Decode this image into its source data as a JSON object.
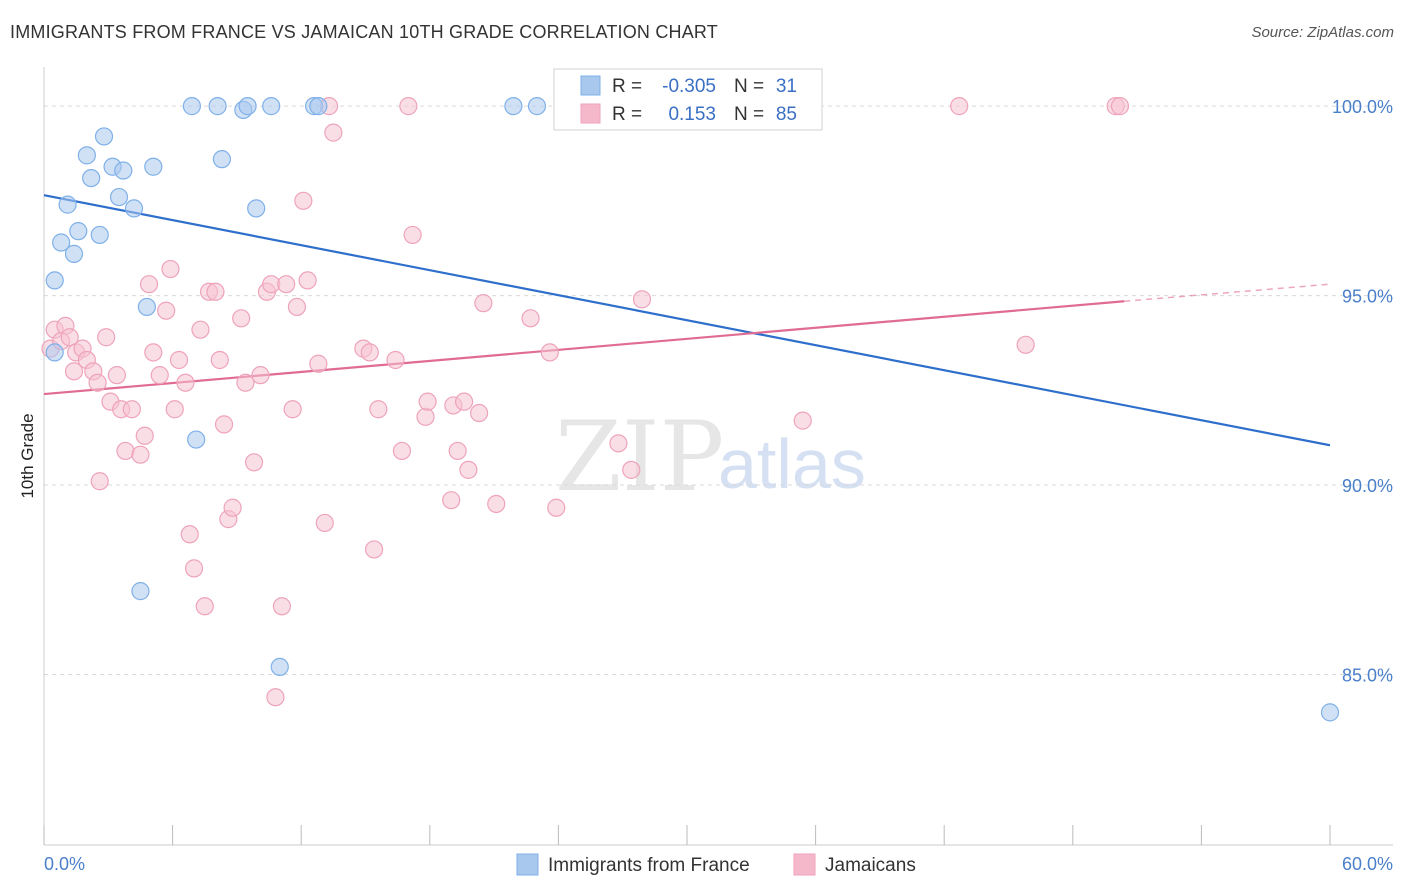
{
  "header": {
    "title": "IMMIGRANTS FROM FRANCE VS JAMAICAN 10TH GRADE CORRELATION CHART",
    "source": "Source: ZipAtlas.com"
  },
  "watermark": {
    "zip": "ZIP",
    "atlas": "atlas"
  },
  "legend_box": {
    "rows": [
      {
        "r_label": "R =",
        "r_value": "-0.305",
        "n_label": "N =",
        "n_value": "31",
        "color": "#a9c8ee"
      },
      {
        "r_label": "R =",
        "r_value": "0.153",
        "n_label": "N =",
        "n_value": "85",
        "color": "#f5b8cb"
      }
    ]
  },
  "chart_data": {
    "type": "scatter",
    "title": "IMMIGRANTS FROM FRANCE VS JAMAICAN 10TH GRADE CORRELATION CHART",
    "xlabel": "",
    "ylabel": "10th Grade",
    "xlim": [
      0,
      60
    ],
    "ylim": [
      80.5,
      100.9
    ],
    "x_tick_labels": {
      "min": "0.0%",
      "max": "60.0%"
    },
    "y_ticks": [
      {
        "value": 100,
        "label": "100.0%"
      },
      {
        "value": 95,
        "label": "95.0%"
      },
      {
        "value": 90,
        "label": "90.0%"
      },
      {
        "value": 85,
        "label": "85.0%"
      }
    ],
    "grid": true,
    "legend_position": "bottom-center",
    "series": [
      {
        "name": "Immigrants from France",
        "color": "#7fb0e8",
        "fill": "#a9c8ee",
        "trend_color": "#2f6fcc",
        "trend": {
          "x0": 0,
          "y0": 97.65,
          "x1": 60,
          "y1": 91.05
        },
        "points": [
          [
            0.5,
            93.5
          ],
          [
            0.5,
            95.4
          ],
          [
            0.8,
            96.4
          ],
          [
            1.1,
            97.4
          ],
          [
            1.4,
            96.1
          ],
          [
            1.6,
            96.7
          ],
          [
            2.0,
            98.7
          ],
          [
            2.2,
            98.1
          ],
          [
            2.6,
            96.6
          ],
          [
            2.8,
            99.2
          ],
          [
            3.2,
            98.4
          ],
          [
            3.5,
            97.6
          ],
          [
            3.7,
            98.3
          ],
          [
            4.2,
            97.3
          ],
          [
            4.5,
            87.2
          ],
          [
            4.8,
            94.7
          ],
          [
            5.1,
            98.4
          ],
          [
            6.9,
            100.0
          ],
          [
            7.1,
            91.2
          ],
          [
            8.1,
            100.0
          ],
          [
            8.3,
            98.6
          ],
          [
            9.3,
            99.9
          ],
          [
            9.5,
            100.0
          ],
          [
            9.9,
            97.3
          ],
          [
            10.6,
            100.0
          ],
          [
            11.0,
            85.2
          ],
          [
            12.6,
            100.0
          ],
          [
            12.8,
            100.0
          ],
          [
            21.9,
            100.0
          ],
          [
            23.0,
            100.0
          ],
          [
            60.0,
            84.0
          ]
        ]
      },
      {
        "name": "Jamaicans",
        "color": "#eea3bb",
        "fill": "#f5c3d2",
        "trend_color": "#e06b93",
        "trend": {
          "x0": 0,
          "y0": 92.4,
          "x1": 50.4,
          "y1": 94.85
        },
        "trend_dash": {
          "x0": 50.4,
          "y0": 94.85,
          "x1": 60,
          "y1": 95.3
        },
        "points": [
          [
            0.3,
            93.6
          ],
          [
            0.5,
            94.1
          ],
          [
            0.8,
            93.8
          ],
          [
            1.0,
            94.2
          ],
          [
            1.2,
            93.9
          ],
          [
            1.4,
            93.0
          ],
          [
            1.5,
            93.5
          ],
          [
            1.8,
            93.6
          ],
          [
            2.0,
            93.3
          ],
          [
            2.3,
            93.0
          ],
          [
            2.5,
            92.7
          ],
          [
            2.6,
            90.1
          ],
          [
            2.9,
            93.9
          ],
          [
            3.1,
            92.2
          ],
          [
            3.4,
            92.9
          ],
          [
            3.6,
            92.0
          ],
          [
            3.8,
            90.9
          ],
          [
            4.1,
            92.0
          ],
          [
            4.5,
            90.8
          ],
          [
            4.7,
            91.3
          ],
          [
            4.9,
            95.3
          ],
          [
            5.1,
            93.5
          ],
          [
            5.4,
            92.9
          ],
          [
            5.7,
            94.6
          ],
          [
            5.9,
            95.7
          ],
          [
            6.1,
            92.0
          ],
          [
            6.3,
            93.3
          ],
          [
            6.6,
            92.7
          ],
          [
            6.8,
            88.7
          ],
          [
            7.0,
            87.8
          ],
          [
            7.3,
            94.1
          ],
          [
            7.5,
            86.8
          ],
          [
            7.7,
            95.1
          ],
          [
            8.0,
            95.1
          ],
          [
            8.2,
            93.3
          ],
          [
            8.4,
            91.6
          ],
          [
            8.6,
            89.1
          ],
          [
            8.8,
            89.4
          ],
          [
            9.2,
            94.4
          ],
          [
            9.4,
            92.7
          ],
          [
            9.8,
            90.6
          ],
          [
            10.1,
            92.9
          ],
          [
            10.4,
            95.1
          ],
          [
            10.6,
            95.3
          ],
          [
            10.8,
            84.4
          ],
          [
            11.1,
            86.8
          ],
          [
            11.3,
            95.3
          ],
          [
            11.6,
            92.0
          ],
          [
            11.8,
            94.7
          ],
          [
            12.1,
            97.5
          ],
          [
            12.3,
            95.4
          ],
          [
            12.8,
            93.2
          ],
          [
            13.1,
            89.0
          ],
          [
            13.3,
            100.0
          ],
          [
            13.5,
            99.3
          ],
          [
            14.9,
            93.6
          ],
          [
            15.2,
            93.5
          ],
          [
            15.4,
            88.3
          ],
          [
            15.6,
            92.0
          ],
          [
            16.4,
            93.3
          ],
          [
            16.7,
            90.9
          ],
          [
            17.0,
            100.0
          ],
          [
            17.2,
            96.6
          ],
          [
            17.8,
            91.8
          ],
          [
            17.9,
            92.2
          ],
          [
            19.0,
            89.6
          ],
          [
            19.1,
            92.1
          ],
          [
            19.3,
            90.9
          ],
          [
            19.6,
            92.2
          ],
          [
            19.8,
            90.4
          ],
          [
            20.3,
            91.9
          ],
          [
            20.5,
            94.8
          ],
          [
            21.1,
            89.5
          ],
          [
            22.7,
            94.4
          ],
          [
            23.6,
            93.5
          ],
          [
            23.9,
            89.4
          ],
          [
            26.8,
            91.1
          ],
          [
            27.4,
            90.4
          ],
          [
            27.6,
            100.0
          ],
          [
            27.9,
            94.9
          ],
          [
            35.4,
            91.7
          ],
          [
            42.7,
            100.0
          ],
          [
            45.8,
            93.7
          ],
          [
            50.0,
            100.0
          ],
          [
            50.2,
            100.0
          ]
        ]
      }
    ]
  }
}
